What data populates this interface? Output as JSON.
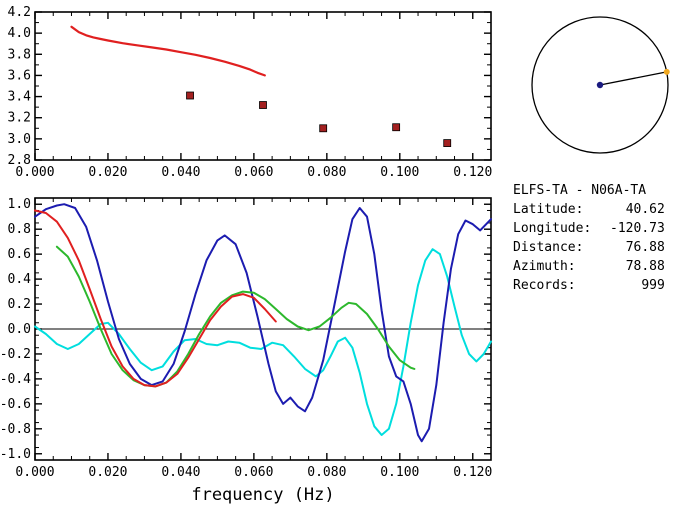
{
  "station_info": {
    "title": "ELFS-TA - N06A-TA",
    "rows": [
      {
        "label": "Latitude:",
        "value": "40.62"
      },
      {
        "label": "Longitude:",
        "value": "-120.73"
      },
      {
        "label": "Distance:",
        "value": "76.88"
      },
      {
        "label": "Azimuth:",
        "value": "78.88"
      },
      {
        "label": "Records:",
        "value": "999"
      }
    ]
  },
  "azimuth_diagram": {
    "azimuth_deg": 78.88,
    "circle_color": "#000000",
    "center_dot_color": "#1a1a80",
    "end_dot_color": "#f0a820"
  },
  "chart_data": [
    {
      "type": "line",
      "name": "dispersion",
      "title": "",
      "xlabel": "",
      "ylabel": "",
      "xlim": [
        0,
        0.125
      ],
      "ylim": [
        2.8,
        4.2
      ],
      "xminor": 0.005,
      "yminor": 0.1,
      "zeroline": false,
      "grid": false,
      "xtick_vals": [
        0.0,
        0.02,
        0.04,
        0.06,
        0.08,
        0.1,
        0.12
      ],
      "xtick_labels": [
        "0.000",
        "0.020",
        "0.040",
        "0.060",
        "0.080",
        "0.100",
        "0.120"
      ],
      "ytick_vals": [
        2.8,
        3.0,
        3.2,
        3.4,
        3.6,
        3.8,
        4.0,
        4.2
      ],
      "ytick_labels": [
        "2.8",
        "3.0",
        "3.2",
        "3.4",
        "3.6",
        "3.8",
        "4.0",
        "4.2"
      ],
      "series": [
        {
          "name": "group-velocity-curve",
          "type": "line",
          "color": "#e02020",
          "width": 2.2,
          "points": [
            [
              0.01,
              4.06
            ],
            [
              0.012,
              4.01
            ],
            [
              0.014,
              3.98
            ],
            [
              0.016,
              3.96
            ],
            [
              0.018,
              3.945
            ],
            [
              0.02,
              3.93
            ],
            [
              0.024,
              3.905
            ],
            [
              0.028,
              3.885
            ],
            [
              0.032,
              3.865
            ],
            [
              0.036,
              3.845
            ],
            [
              0.04,
              3.82
            ],
            [
              0.044,
              3.795
            ],
            [
              0.048,
              3.765
            ],
            [
              0.052,
              3.73
            ],
            [
              0.056,
              3.69
            ],
            [
              0.059,
              3.655
            ],
            [
              0.061,
              3.625
            ],
            [
              0.063,
              3.6
            ]
          ]
        },
        {
          "name": "picked-velocities",
          "type": "square",
          "color": "#a32020",
          "size": 7,
          "points": [
            [
              0.0425,
              3.41
            ],
            [
              0.0625,
              3.32
            ],
            [
              0.079,
              3.1
            ],
            [
              0.099,
              3.11
            ],
            [
              0.113,
              2.96
            ]
          ]
        }
      ]
    },
    {
      "type": "line",
      "name": "correlation",
      "title": "",
      "xlabel": "frequency (Hz)",
      "ylabel": "",
      "xlim": [
        0,
        0.125
      ],
      "ylim": [
        -1.05,
        1.05
      ],
      "xminor": 0.005,
      "yminor": 0.1,
      "zeroline": true,
      "grid": false,
      "xtick_vals": [
        0.0,
        0.02,
        0.04,
        0.06,
        0.08,
        0.1,
        0.12
      ],
      "xtick_labels": [
        "0.000",
        "0.020",
        "0.040",
        "0.060",
        "0.080",
        "0.100",
        "0.120"
      ],
      "ytick_vals": [
        1.0,
        0.8,
        0.6,
        0.4,
        0.2,
        0.0,
        -0.2,
        -0.4,
        -0.6,
        -0.8,
        -1.0
      ],
      "ytick_labels": [
        "1.0",
        "0.8",
        "0.6",
        "0.4",
        "0.2",
        "0.0",
        "-0.2",
        "-0.4",
        "-0.6",
        "-0.8",
        "-1.0"
      ],
      "series": [
        {
          "name": "cyan-trace",
          "type": "line",
          "color": "#00dede",
          "width": 2,
          "points": [
            [
              0.0,
              0.02
            ],
            [
              0.003,
              -0.04
            ],
            [
              0.006,
              -0.12
            ],
            [
              0.009,
              -0.16
            ],
            [
              0.012,
              -0.12
            ],
            [
              0.015,
              -0.04
            ],
            [
              0.018,
              0.04
            ],
            [
              0.02,
              0.05
            ],
            [
              0.023,
              -0.04
            ],
            [
              0.026,
              -0.16
            ],
            [
              0.029,
              -0.27
            ],
            [
              0.032,
              -0.33
            ],
            [
              0.035,
              -0.3
            ],
            [
              0.038,
              -0.18
            ],
            [
              0.041,
              -0.09
            ],
            [
              0.044,
              -0.08
            ],
            [
              0.047,
              -0.12
            ],
            [
              0.05,
              -0.13
            ],
            [
              0.053,
              -0.1
            ],
            [
              0.056,
              -0.11
            ],
            [
              0.059,
              -0.15
            ],
            [
              0.062,
              -0.16
            ],
            [
              0.065,
              -0.11
            ],
            [
              0.068,
              -0.13
            ],
            [
              0.071,
              -0.22
            ],
            [
              0.074,
              -0.32
            ],
            [
              0.077,
              -0.38
            ],
            [
              0.079,
              -0.33
            ],
            [
              0.081,
              -0.22
            ],
            [
              0.083,
              -0.1
            ],
            [
              0.085,
              -0.07
            ],
            [
              0.087,
              -0.15
            ],
            [
              0.089,
              -0.35
            ],
            [
              0.091,
              -0.6
            ],
            [
              0.093,
              -0.78
            ],
            [
              0.095,
              -0.85
            ],
            [
              0.097,
              -0.8
            ],
            [
              0.099,
              -0.6
            ],
            [
              0.101,
              -0.3
            ],
            [
              0.103,
              0.05
            ],
            [
              0.105,
              0.35
            ],
            [
              0.107,
              0.55
            ],
            [
              0.109,
              0.64
            ],
            [
              0.111,
              0.6
            ],
            [
              0.113,
              0.42
            ],
            [
              0.115,
              0.18
            ],
            [
              0.117,
              -0.05
            ],
            [
              0.119,
              -0.2
            ],
            [
              0.121,
              -0.26
            ],
            [
              0.123,
              -0.2
            ],
            [
              0.125,
              -0.1
            ]
          ]
        },
        {
          "name": "blue-trace",
          "type": "line",
          "color": "#1c1cb0",
          "width": 2,
          "points": [
            [
              0.0,
              0.9
            ],
            [
              0.003,
              0.96
            ],
            [
              0.006,
              0.99
            ],
            [
              0.008,
              1.0
            ],
            [
              0.011,
              0.97
            ],
            [
              0.014,
              0.82
            ],
            [
              0.017,
              0.55
            ],
            [
              0.02,
              0.22
            ],
            [
              0.023,
              -0.08
            ],
            [
              0.026,
              -0.28
            ],
            [
              0.029,
              -0.4
            ],
            [
              0.032,
              -0.45
            ],
            [
              0.035,
              -0.42
            ],
            [
              0.038,
              -0.28
            ],
            [
              0.041,
              -0.02
            ],
            [
              0.044,
              0.28
            ],
            [
              0.047,
              0.55
            ],
            [
              0.05,
              0.71
            ],
            [
              0.052,
              0.75
            ],
            [
              0.055,
              0.68
            ],
            [
              0.058,
              0.45
            ],
            [
              0.061,
              0.1
            ],
            [
              0.064,
              -0.28
            ],
            [
              0.066,
              -0.5
            ],
            [
              0.068,
              -0.6
            ],
            [
              0.07,
              -0.55
            ],
            [
              0.072,
              -0.62
            ],
            [
              0.074,
              -0.66
            ],
            [
              0.076,
              -0.55
            ],
            [
              0.079,
              -0.25
            ],
            [
              0.082,
              0.18
            ],
            [
              0.085,
              0.62
            ],
            [
              0.087,
              0.88
            ],
            [
              0.089,
              0.97
            ],
            [
              0.091,
              0.9
            ],
            [
              0.093,
              0.6
            ],
            [
              0.095,
              0.15
            ],
            [
              0.097,
              -0.22
            ],
            [
              0.099,
              -0.38
            ],
            [
              0.101,
              -0.42
            ],
            [
              0.103,
              -0.6
            ],
            [
              0.105,
              -0.85
            ],
            [
              0.106,
              -0.9
            ],
            [
              0.108,
              -0.8
            ],
            [
              0.11,
              -0.45
            ],
            [
              0.112,
              0.05
            ],
            [
              0.114,
              0.48
            ],
            [
              0.116,
              0.76
            ],
            [
              0.118,
              0.87
            ],
            [
              0.12,
              0.84
            ],
            [
              0.122,
              0.79
            ],
            [
              0.125,
              0.88
            ]
          ]
        },
        {
          "name": "green-trace",
          "type": "line",
          "color": "#2db82d",
          "width": 2,
          "points": [
            [
              0.006,
              0.66
            ],
            [
              0.009,
              0.58
            ],
            [
              0.012,
              0.42
            ],
            [
              0.015,
              0.22
            ],
            [
              0.018,
              0.0
            ],
            [
              0.021,
              -0.2
            ],
            [
              0.024,
              -0.33
            ],
            [
              0.027,
              -0.41
            ],
            [
              0.03,
              -0.45
            ],
            [
              0.033,
              -0.46
            ],
            [
              0.036,
              -0.43
            ],
            [
              0.039,
              -0.34
            ],
            [
              0.042,
              -0.2
            ],
            [
              0.045,
              -0.04
            ],
            [
              0.048,
              0.1
            ],
            [
              0.051,
              0.21
            ],
            [
              0.054,
              0.27
            ],
            [
              0.057,
              0.3
            ],
            [
              0.06,
              0.29
            ],
            [
              0.063,
              0.24
            ],
            [
              0.066,
              0.16
            ],
            [
              0.069,
              0.08
            ],
            [
              0.072,
              0.02
            ],
            [
              0.075,
              -0.01
            ],
            [
              0.078,
              0.02
            ],
            [
              0.081,
              0.09
            ],
            [
              0.084,
              0.17
            ],
            [
              0.086,
              0.21
            ],
            [
              0.088,
              0.2
            ],
            [
              0.091,
              0.12
            ],
            [
              0.094,
              0.0
            ],
            [
              0.097,
              -0.14
            ],
            [
              0.1,
              -0.25
            ],
            [
              0.103,
              -0.31
            ],
            [
              0.104,
              -0.32
            ]
          ]
        },
        {
          "name": "red-trace",
          "type": "line",
          "color": "#e02020",
          "width": 2,
          "points": [
            [
              0.0,
              0.95
            ],
            [
              0.003,
              0.93
            ],
            [
              0.006,
              0.86
            ],
            [
              0.009,
              0.73
            ],
            [
              0.012,
              0.55
            ],
            [
              0.015,
              0.32
            ],
            [
              0.018,
              0.08
            ],
            [
              0.021,
              -0.14
            ],
            [
              0.024,
              -0.3
            ],
            [
              0.027,
              -0.4
            ],
            [
              0.03,
              -0.45
            ],
            [
              0.033,
              -0.46
            ],
            [
              0.036,
              -0.43
            ],
            [
              0.039,
              -0.36
            ],
            [
              0.042,
              -0.23
            ],
            [
              0.045,
              -0.08
            ],
            [
              0.048,
              0.07
            ],
            [
              0.051,
              0.18
            ],
            [
              0.054,
              0.26
            ],
            [
              0.057,
              0.28
            ],
            [
              0.06,
              0.25
            ],
            [
              0.063,
              0.16
            ],
            [
              0.066,
              0.06
            ]
          ]
        }
      ]
    }
  ]
}
